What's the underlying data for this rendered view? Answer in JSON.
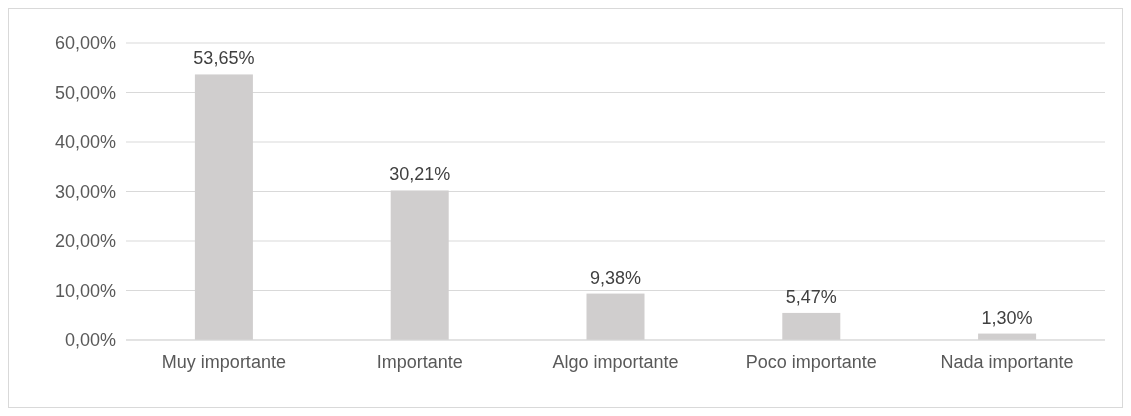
{
  "chart_data": {
    "type": "bar",
    "categories": [
      "Muy importante",
      "Importante",
      "Algo importante",
      "Poco importante",
      "Nada importante"
    ],
    "values": [
      53.65,
      30.21,
      9.38,
      5.47,
      1.3
    ],
    "value_labels": [
      "53,65%",
      "30,21%",
      "9,38%",
      "5,47%",
      "1,30%"
    ],
    "color": "#d0cece",
    "ylim": [
      0,
      60
    ],
    "yticks": [
      {
        "value": 0,
        "label": "0,00%"
      },
      {
        "value": 10,
        "label": "10,00%"
      },
      {
        "value": 20,
        "label": "20,00%"
      },
      {
        "value": 30,
        "label": "30,00%"
      },
      {
        "value": 40,
        "label": "40,00%"
      },
      {
        "value": 50,
        "label": "50,00%"
      },
      {
        "value": 60,
        "label": "60,00%"
      }
    ],
    "grid": "y"
  }
}
